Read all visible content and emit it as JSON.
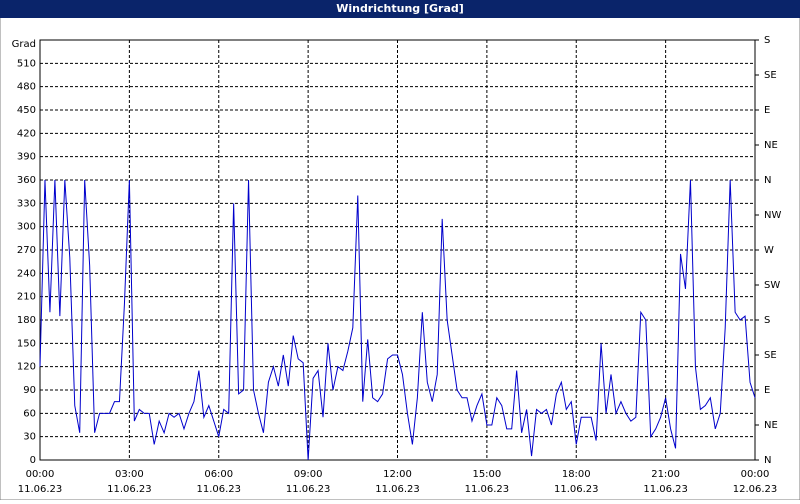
{
  "chart_data": {
    "type": "line",
    "title": "Windrichtung [Grad]",
    "y_label": "Grad",
    "x": [
      0,
      10,
      20,
      30,
      40,
      50,
      60,
      70,
      80,
      90,
      100,
      110,
      120,
      130,
      140,
      150,
      160,
      170,
      180,
      190,
      200,
      210,
      220,
      230,
      240,
      250,
      260,
      270,
      280,
      290,
      300,
      310,
      320,
      330,
      340,
      350,
      360,
      370,
      380,
      390,
      400,
      410,
      420,
      430,
      440,
      450,
      460,
      470,
      480,
      490,
      500,
      510,
      520,
      530,
      540,
      550,
      560,
      570,
      580,
      590,
      600,
      610,
      620,
      630,
      640,
      650,
      660,
      670,
      680,
      690,
      700,
      710,
      720,
      730,
      740,
      750,
      760,
      770,
      780,
      790,
      800,
      810,
      820,
      830,
      840,
      850,
      860,
      870,
      880,
      890,
      900,
      910,
      920,
      930,
      940,
      950,
      960,
      970,
      980,
      990,
      1000,
      1010,
      1020,
      1030,
      1040,
      1050,
      1060,
      1070,
      1080,
      1090,
      1100,
      1110,
      1120,
      1130,
      1140,
      1150,
      1160,
      1170,
      1180,
      1190,
      1200,
      1210,
      1220,
      1230,
      1240,
      1250,
      1260,
      1270,
      1280,
      1290,
      1300,
      1310,
      1320,
      1330,
      1340,
      1350,
      1360,
      1370,
      1380,
      1390,
      1400,
      1410,
      1420,
      1430,
      1440
    ],
    "series": [
      {
        "color": "#0000cc",
        "values": [
          120,
          360,
          190,
          360,
          185,
          360,
          260,
          70,
          35,
          360,
          250,
          35,
          60,
          60,
          60,
          75,
          75,
          200,
          360,
          50,
          65,
          60,
          60,
          20,
          50,
          35,
          60,
          55,
          60,
          40,
          60,
          75,
          115,
          55,
          70,
          50,
          30,
          65,
          60,
          330,
          85,
          90,
          360,
          90,
          60,
          35,
          100,
          120,
          95,
          135,
          95,
          160,
          130,
          125,
          0,
          105,
          115,
          55,
          150,
          90,
          120,
          115,
          140,
          170,
          340,
          75,
          155,
          80,
          75,
          85,
          130,
          135,
          135,
          110,
          60,
          20,
          80,
          190,
          100,
          75,
          110,
          310,
          180,
          135,
          90,
          80,
          80,
          50,
          70,
          85,
          45,
          45,
          80,
          70,
          40,
          40,
          115,
          35,
          65,
          5,
          65,
          60,
          65,
          45,
          85,
          100,
          65,
          75,
          20,
          55,
          55,
          55,
          25,
          150,
          60,
          110,
          60,
          75,
          60,
          50,
          55,
          190,
          180,
          30,
          40,
          55,
          80,
          40,
          15,
          265,
          220,
          360,
          120,
          65,
          70,
          80,
          40,
          60,
          170,
          360,
          190,
          180,
          185,
          100,
          80
        ]
      }
    ],
    "xlim": [
      0,
      1440
    ],
    "xticks": [
      {
        "value": 0,
        "label": "00:00"
      },
      {
        "value": 180,
        "label": "03:00"
      },
      {
        "value": 360,
        "label": "06:00"
      },
      {
        "value": 540,
        "label": "09:00"
      },
      {
        "value": 720,
        "label": "12:00"
      },
      {
        "value": 900,
        "label": "15:00"
      },
      {
        "value": 1080,
        "label": "18:00"
      },
      {
        "value": 1260,
        "label": "21:00"
      },
      {
        "value": 1440,
        "label": "00:00"
      }
    ],
    "xtick_dates": [
      "11.06.23",
      "11.06.23",
      "11.06.23",
      "11.06.23",
      "11.06.23",
      "11.06.23",
      "11.06.23",
      "11.06.23",
      "12.06.23"
    ],
    "ylim": [
      0,
      540
    ],
    "yticks": [
      0,
      30,
      60,
      90,
      120,
      150,
      180,
      210,
      240,
      270,
      300,
      330,
      360,
      390,
      420,
      450,
      480,
      510
    ],
    "y2lim": [
      0,
      540
    ],
    "y2ticks": [
      {
        "value": 0,
        "label": "N"
      },
      {
        "value": 45,
        "label": "NE"
      },
      {
        "value": 90,
        "label": "E"
      },
      {
        "value": 135,
        "label": "SE"
      },
      {
        "value": 180,
        "label": "S"
      },
      {
        "value": 225,
        "label": "SW"
      },
      {
        "value": 270,
        "label": "W"
      },
      {
        "value": 315,
        "label": "NW"
      },
      {
        "value": 360,
        "label": "N"
      },
      {
        "value": 405,
        "label": "NE"
      },
      {
        "value": 450,
        "label": "E"
      },
      {
        "value": 495,
        "label": "SE"
      },
      {
        "value": 540,
        "label": "S"
      }
    ],
    "grid": true
  }
}
